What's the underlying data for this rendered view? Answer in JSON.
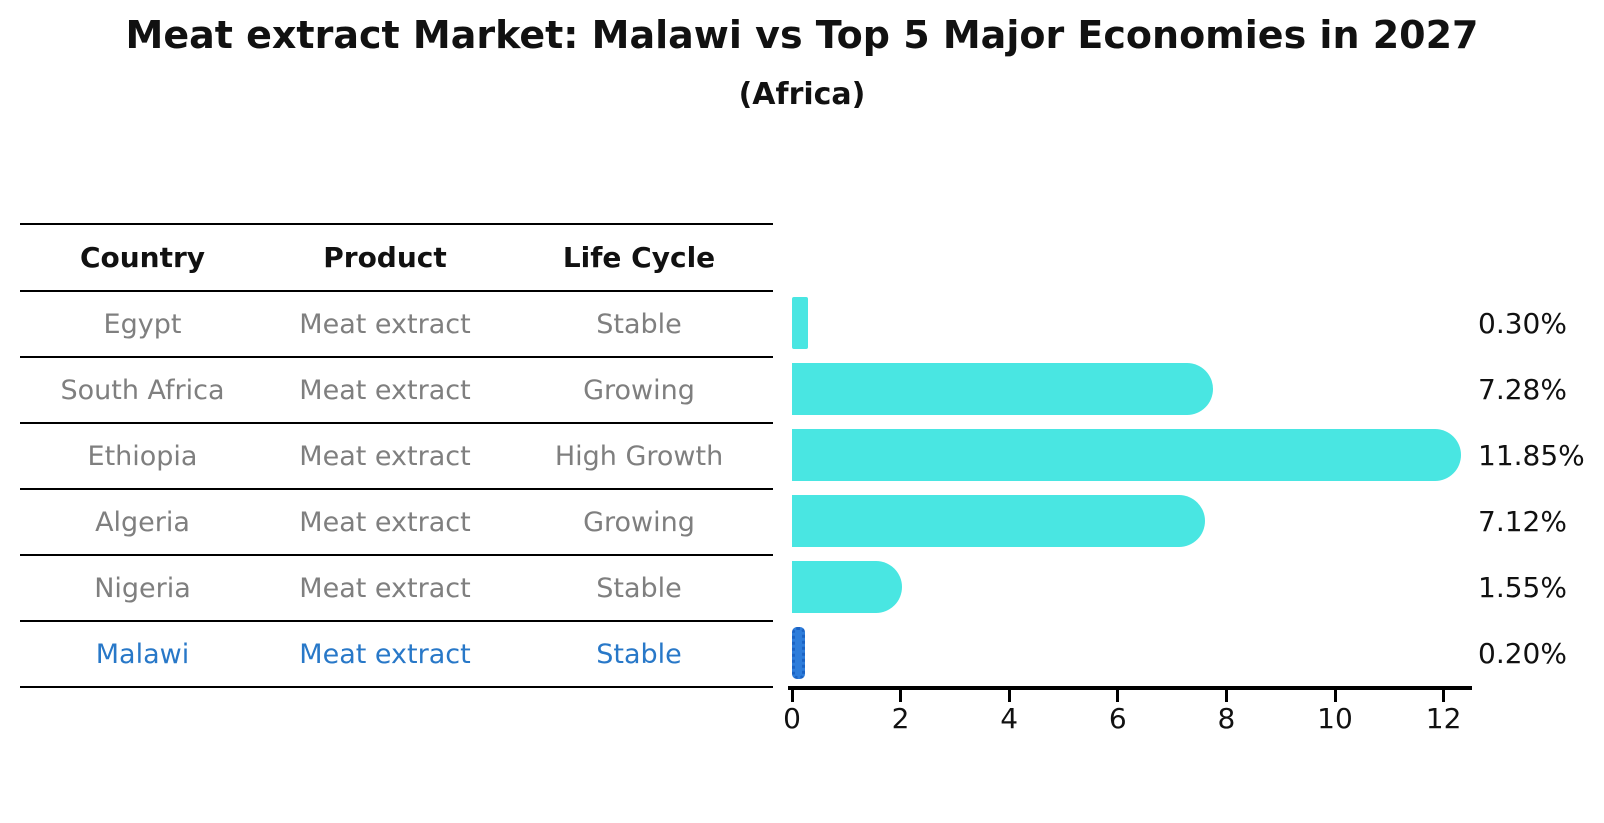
{
  "title": "Meat extract Market: Malawi vs Top 5 Major Economies in 2027",
  "subtitle": "(Africa)",
  "colors": {
    "bar": "#49E6E2",
    "highlight_bar": "#2E7DDB",
    "highlight_text": "#2878C8",
    "table_text": "#7f7f7f",
    "header_text": "#111111",
    "axis": "#000000"
  },
  "table": {
    "columns": [
      "Country",
      "Product",
      "Life Cycle"
    ],
    "rows": [
      {
        "country": "Egypt",
        "product": "Meat extract",
        "life_cycle": "Stable",
        "highlight": false
      },
      {
        "country": "South Africa",
        "product": "Meat extract",
        "life_cycle": "Growing",
        "highlight": false
      },
      {
        "country": "Ethiopia",
        "product": "Meat extract",
        "life_cycle": "High Growth",
        "highlight": false
      },
      {
        "country": "Algeria",
        "product": "Meat extract",
        "life_cycle": "Growing",
        "highlight": false
      },
      {
        "country": "Nigeria",
        "product": "Meat extract",
        "life_cycle": "Stable",
        "highlight": false
      },
      {
        "country": "Malawi",
        "product": "Meat extract",
        "life_cycle": "Stable",
        "highlight": true
      }
    ]
  },
  "chart_data": {
    "type": "bar",
    "orientation": "horizontal",
    "title": "Meat extract Market: Malawi vs Top 5 Major Economies in 2027",
    "subtitle": "(Africa)",
    "categories": [
      "Egypt",
      "South Africa",
      "Ethiopia",
      "Algeria",
      "Nigeria",
      "Malawi"
    ],
    "values": [
      0.3,
      7.28,
      11.85,
      7.12,
      1.55,
      0.2
    ],
    "value_labels": [
      "0.30%",
      "7.28%",
      "11.85%",
      "7.12%",
      "1.55%",
      "0.20%"
    ],
    "highlight_category": "Malawi",
    "xlabel": "",
    "ylabel": "",
    "xlim": [
      0,
      12.6
    ],
    "xticks": [
      0,
      2,
      4,
      6,
      8,
      10,
      12
    ],
    "grid": false,
    "legend": "none"
  }
}
